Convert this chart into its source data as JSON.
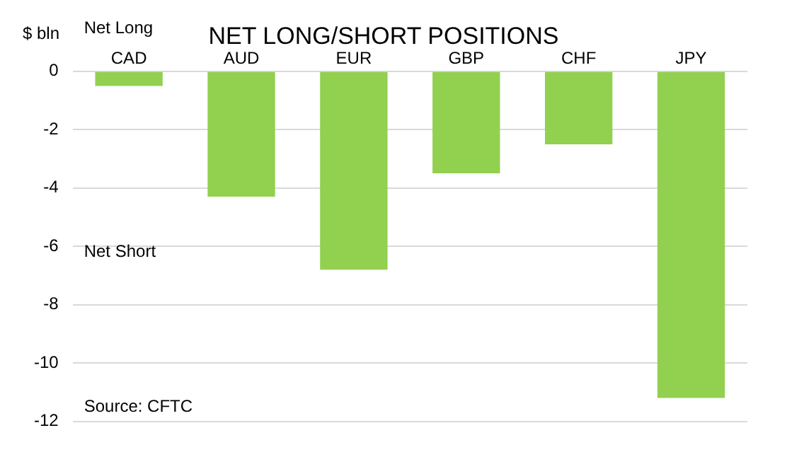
{
  "chart_data": {
    "type": "bar",
    "title": "NET LONG/SHORT POSITIONS",
    "ylabel": "$ bln",
    "categories": [
      "CAD",
      "AUD",
      "EUR",
      "GBP",
      "CHF",
      "JPY"
    ],
    "values": [
      -0.5,
      -4.3,
      -6.8,
      -3.5,
      -2.5,
      -11.2
    ],
    "color": "#92d050",
    "ylim": [
      -12,
      0
    ],
    "yticks": [
      -12,
      -10,
      -8,
      -6,
      -4,
      -2,
      0
    ],
    "grid": "y",
    "annotations": [
      "Net Long",
      "Net Short",
      "Source: CFTC"
    ]
  }
}
